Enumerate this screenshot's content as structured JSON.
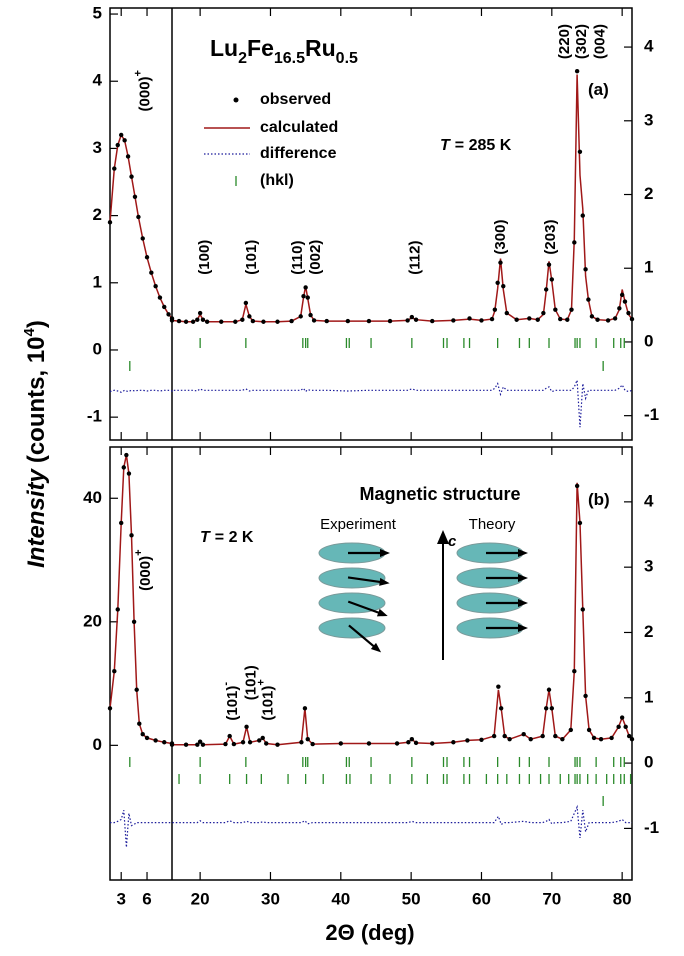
{
  "xlabel": "2Θ (deg)",
  "ylabel": [
    "Intensity",
    "(counts, 10",
    "4",
    ")"
  ],
  "chart_data": [
    {
      "type": "line",
      "title": [
        "Lu",
        "2",
        "Fe",
        "16.5",
        "Ru",
        "0.5"
      ],
      "panel_label": "(a)",
      "condition": [
        "T",
        "= 285 K"
      ],
      "legend": true,
      "xlim": [
        1.7,
        81.4
      ],
      "xbreak": [
        8.9,
        16
      ],
      "xticks": [
        3,
        6,
        20,
        30,
        40,
        50,
        60,
        70,
        80
      ],
      "xticklabels": false,
      "ylim": [
        -1.34,
        5.09
      ],
      "yticks": [
        -1,
        0,
        1,
        2,
        3,
        4,
        5
      ],
      "y2lim": [
        -1.33,
        4.53
      ],
      "y2ticks": [
        -1,
        0,
        1,
        2,
        3,
        4
      ],
      "x": [
        1.7,
        2.2,
        2.6,
        3.0,
        3.4,
        3.8,
        4.2,
        4.6,
        5.0,
        5.5,
        6.0,
        6.5,
        7.0,
        7.5,
        8.0,
        8.5,
        8.9,
        16,
        17,
        18,
        19,
        19.6,
        20,
        20.4,
        21,
        23,
        25,
        26.0,
        26.5,
        27.0,
        27.5,
        29,
        31,
        33,
        34.3,
        34.7,
        35.0,
        35.3,
        35.7,
        36.2,
        38,
        41,
        44,
        47,
        49.5,
        50.1,
        50.7,
        53,
        56,
        58.3,
        60,
        61.5,
        61.9,
        62.3,
        62.7,
        63.1,
        63.6,
        65,
        66.8,
        68,
        68.8,
        69.2,
        69.6,
        70.0,
        70.5,
        71.2,
        72.2,
        72.8,
        73.2,
        73.6,
        74.0,
        74.4,
        74.8,
        75.2,
        75.7,
        76.5,
        78,
        79,
        79.6,
        80.0,
        80.4,
        80.9,
        81.4
      ],
      "series": [
        {
          "name": "observed",
          "color": "#000000",
          "style": "points",
          "values": [
            1.9,
            2.7,
            3.05,
            3.2,
            3.12,
            2.88,
            2.58,
            2.28,
            1.98,
            1.66,
            1.38,
            1.15,
            0.95,
            0.78,
            0.64,
            0.53,
            0.47,
            0.44,
            0.43,
            0.42,
            0.42,
            0.45,
            0.55,
            0.45,
            0.42,
            0.42,
            0.42,
            0.45,
            0.7,
            0.5,
            0.43,
            0.42,
            0.42,
            0.43,
            0.5,
            0.8,
            0.93,
            0.78,
            0.52,
            0.44,
            0.43,
            0.43,
            0.43,
            0.43,
            0.44,
            0.49,
            0.45,
            0.43,
            0.44,
            0.47,
            0.44,
            0.46,
            0.6,
            1.0,
            1.3,
            0.95,
            0.55,
            0.45,
            0.47,
            0.45,
            0.55,
            0.9,
            1.27,
            1.05,
            0.6,
            0.46,
            0.45,
            0.6,
            1.6,
            4.15,
            2.95,
            2.0,
            1.2,
            0.75,
            0.5,
            0.45,
            0.44,
            0.47,
            0.62,
            0.82,
            0.72,
            0.55,
            0.46
          ]
        },
        {
          "name": "calculated",
          "color": "#a01818",
          "style": "line",
          "values": [
            1.9,
            2.7,
            3.05,
            3.2,
            3.12,
            2.88,
            2.58,
            2.28,
            1.98,
            1.66,
            1.38,
            1.15,
            0.95,
            0.78,
            0.64,
            0.53,
            0.47,
            0.44,
            0.43,
            0.42,
            0.42,
            0.45,
            0.53,
            0.45,
            0.42,
            0.42,
            0.42,
            0.45,
            0.68,
            0.5,
            0.43,
            0.42,
            0.42,
            0.43,
            0.5,
            0.78,
            0.95,
            0.77,
            0.52,
            0.44,
            0.43,
            0.43,
            0.43,
            0.43,
            0.44,
            0.48,
            0.45,
            0.43,
            0.44,
            0.46,
            0.44,
            0.46,
            0.58,
            0.92,
            1.36,
            0.9,
            0.55,
            0.45,
            0.47,
            0.45,
            0.53,
            0.88,
            1.32,
            1.03,
            0.6,
            0.46,
            0.45,
            0.6,
            1.65,
            4.1,
            2.6,
            2.1,
            1.1,
            0.75,
            0.5,
            0.45,
            0.44,
            0.47,
            0.6,
            0.9,
            0.72,
            0.53,
            0.46
          ]
        },
        {
          "name": "difference",
          "color": "#1a1a9a",
          "style": "dotted",
          "values": [
            -0.62,
            -0.6,
            -0.61,
            -0.63,
            -0.6,
            -0.62,
            -0.6,
            -0.61,
            -0.6,
            -0.6,
            -0.61,
            -0.6,
            -0.6,
            -0.61,
            -0.6,
            -0.6,
            -0.61,
            -0.6,
            -0.6,
            -0.6,
            -0.6,
            -0.61,
            -0.58,
            -0.6,
            -0.6,
            -0.6,
            -0.6,
            -0.6,
            -0.58,
            -0.61,
            -0.6,
            -0.6,
            -0.6,
            -0.6,
            -0.6,
            -0.57,
            -0.62,
            -0.59,
            -0.6,
            -0.6,
            -0.6,
            -0.61,
            -0.6,
            -0.6,
            -0.6,
            -0.58,
            -0.6,
            -0.6,
            -0.6,
            -0.6,
            -0.6,
            -0.6,
            -0.57,
            -0.5,
            -0.66,
            -0.55,
            -0.6,
            -0.6,
            -0.6,
            -0.6,
            -0.6,
            -0.57,
            -0.55,
            -0.62,
            -0.6,
            -0.6,
            -0.6,
            -0.6,
            -0.55,
            -0.45,
            -1.15,
            -0.5,
            -0.72,
            -0.6,
            -0.6,
            -0.6,
            -0.6,
            -0.6,
            -0.57,
            -0.52,
            -0.6,
            -0.62,
            -0.6
          ]
        }
      ],
      "hkl": {
        "name": "(hkl)",
        "color": "#2a8a2a",
        "rows": [
          [
            20,
            26.5,
            34.6,
            35.0,
            35.3,
            40.8,
            41.2,
            44.3,
            50.1,
            54.6,
            55.1,
            57.5,
            58.3,
            62.3,
            65.4,
            66.8,
            69.6,
            73.3,
            73.6,
            74.0,
            76.3,
            78.8,
            79.8,
            80.3
          ],
          [
            4.0,
            77.3
          ]
        ]
      },
      "annotations": [
        {
          "text": "(000)",
          "sup": "+",
          "x": 5.8,
          "y": 3.55
        },
        {
          "text": "(100)",
          "x": 20.7,
          "y": 1.12
        },
        {
          "text": "(101)",
          "x": 27.4,
          "y": 1.12
        },
        {
          "text": "(110)",
          "x": 33.9,
          "y": 1.12
        },
        {
          "text": "(002)",
          "x": 36.5,
          "y": 1.12
        },
        {
          "text": "(112)",
          "x": 50.6,
          "y": 1.12
        },
        {
          "text": "(300)",
          "x": 62.8,
          "y": 1.42
        },
        {
          "text": "(203)",
          "x": 69.9,
          "y": 1.42
        },
        {
          "text": "(220)",
          "x": 71.9,
          "y": 4.33
        },
        {
          "text": "(302)",
          "x": 74.3,
          "y": 4.33
        },
        {
          "text": "(004)",
          "x": 76.9,
          "y": 4.33
        }
      ]
    },
    {
      "type": "line",
      "panel_label": "(b)",
      "condition": [
        "T",
        "= 2 K"
      ],
      "legend": false,
      "xlim": [
        1.7,
        81.4
      ],
      "xbreak": [
        8.9,
        16
      ],
      "xticks": [
        3,
        6,
        20,
        30,
        40,
        50,
        60,
        70,
        80
      ],
      "xticklabels": true,
      "ylim": [
        -21.8,
        48.3
      ],
      "yticks": [
        0,
        20,
        40
      ],
      "y2lim": [
        -1.79,
        4.84
      ],
      "y2ticks": [
        -1,
        0,
        1,
        2,
        3,
        4
      ],
      "x": [
        1.7,
        2.2,
        2.6,
        3.0,
        3.3,
        3.6,
        3.9,
        4.2,
        4.5,
        4.8,
        5.1,
        5.5,
        6.0,
        7.0,
        8.0,
        8.9,
        16,
        18,
        19.6,
        20.0,
        20.4,
        23.6,
        24.2,
        24.8,
        26.1,
        26.6,
        27.1,
        28.4,
        28.9,
        29.4,
        31,
        34.4,
        34.9,
        35.3,
        36,
        40,
        44,
        48,
        49.6,
        50.1,
        50.7,
        53,
        56,
        58,
        60,
        61.8,
        62.4,
        62.8,
        63.3,
        64,
        66,
        67,
        68.7,
        69.2,
        69.6,
        70.0,
        70.5,
        71.5,
        72.7,
        73.2,
        73.6,
        74.0,
        74.4,
        74.8,
        75.3,
        76,
        77,
        78.5,
        79.5,
        80.0,
        80.5,
        81.0,
        81.4
      ],
      "series": [
        {
          "name": "observed",
          "color": "#000000",
          "style": "points",
          "values": [
            6,
            12,
            22,
            36,
            45,
            47,
            44,
            34,
            20,
            9,
            3.5,
            1.8,
            1.2,
            0.8,
            0.5,
            0.3,
            0.1,
            0.1,
            0.1,
            0.6,
            0.1,
            0.2,
            1.5,
            0.2,
            0.5,
            3.0,
            0.5,
            0.8,
            1.2,
            0.3,
            0.1,
            0.5,
            6.0,
            1.0,
            0.2,
            0.3,
            0.3,
            0.3,
            0.5,
            1.0,
            0.4,
            0.3,
            0.5,
            0.8,
            0.9,
            1.5,
            9.5,
            6,
            1.5,
            1,
            1.8,
            1.0,
            1.5,
            6,
            9,
            6,
            1.5,
            1,
            2.5,
            12,
            42,
            36,
            22,
            8,
            2.5,
            1.2,
            1,
            1.2,
            3,
            4.5,
            3,
            1.5,
            1
          ]
        },
        {
          "name": "calculated",
          "color": "#a01818",
          "style": "line",
          "values": [
            6,
            12,
            22,
            36,
            45,
            47,
            44,
            34,
            20,
            9,
            3.5,
            1.8,
            1.2,
            0.8,
            0.5,
            0.3,
            0.1,
            0.1,
            0.1,
            0.6,
            0.1,
            0.2,
            1.5,
            0.2,
            0.5,
            3.0,
            0.5,
            0.8,
            1.2,
            0.3,
            0.1,
            0.5,
            6.0,
            1.0,
            0.2,
            0.3,
            0.3,
            0.3,
            0.5,
            1.0,
            0.4,
            0.3,
            0.5,
            0.8,
            0.9,
            1.5,
            9.0,
            6,
            1.5,
            1,
            1.8,
            1.0,
            1.5,
            6,
            9,
            6,
            1.5,
            1,
            2.5,
            12,
            42.5,
            36,
            22,
            8,
            2.5,
            1.2,
            1,
            1.2,
            3,
            4.5,
            3,
            1.5,
            1
          ]
        },
        {
          "name": "difference",
          "color": "#1a1a9a",
          "style": "dotted",
          "values": [
            -12.5,
            -12.5,
            -12.3,
            -12,
            -10.5,
            -16.5,
            -11,
            -13,
            -12.8,
            -12.5,
            -12.5,
            -12.5,
            -12.5,
            -12.5,
            -12.5,
            -12.5,
            -12.5,
            -12.5,
            -12.5,
            -12.2,
            -12.5,
            -12.5,
            -12.2,
            -12.5,
            -12.5,
            -12.3,
            -12.5,
            -12.5,
            -12.4,
            -12.5,
            -12.5,
            -12.5,
            -12.2,
            -12.7,
            -12.5,
            -12.5,
            -12.5,
            -12.5,
            -12.5,
            -12.3,
            -12.5,
            -12.5,
            -12.5,
            -12.5,
            -12.5,
            -12.5,
            -11.5,
            -12.8,
            -12.5,
            -12.5,
            -12.3,
            -12.5,
            -12.5,
            -12.3,
            -12,
            -12.7,
            -12.5,
            -12.5,
            -12.3,
            -11,
            -10,
            -15,
            -10.5,
            -14,
            -12.5,
            -12.5,
            -12.5,
            -12.5,
            -12.3,
            -12,
            -12.5,
            -12.5,
            -12.5
          ]
        }
      ],
      "hkl": {
        "name": "(hkl)",
        "color": "#2a8a2a",
        "rows": [
          [
            4.0,
            20,
            26.5,
            34.6,
            35.0,
            35.3,
            40.8,
            41.2,
            44.3,
            50.1,
            54.6,
            55.1,
            57.5,
            58.3,
            62.3,
            65.4,
            66.8,
            69.6,
            73.3,
            73.6,
            74.0,
            76.3,
            78.8,
            79.8,
            80.3
          ],
          [
            17,
            20,
            24.2,
            26.6,
            28.7,
            32.5,
            35,
            37.5,
            40.8,
            41.3,
            44.3,
            47,
            50.1,
            52.3,
            54.6,
            55.1,
            57.5,
            58.3,
            60.7,
            62.3,
            63.6,
            65.4,
            66.8,
            68.4,
            69.6,
            71.2,
            72.4,
            73.3,
            73.6,
            74,
            75.1,
            76.3,
            77.8,
            78.8,
            79.8,
            80.3,
            81.2
          ],
          [
            77.3
          ]
        ]
      },
      "annotations": [
        {
          "text": "(000)",
          "sup": "+",
          "x": 5.9,
          "y": 25
        },
        {
          "text": "(101)",
          "sup": "-",
          "x": 24.7,
          "y": 4.0
        },
        {
          "text": "(101)",
          "x": 27.3,
          "y": 7.3
        },
        {
          "text": "(101)",
          "sup": "+",
          "x": 29.7,
          "y": 4.0
        }
      ],
      "inset": {
        "title": "Magnetic structure",
        "labels": [
          "Experiment",
          "Theory"
        ],
        "axis": "c",
        "experiment_angles": [
          0,
          8,
          20,
          40
        ],
        "theory_angles": [
          0,
          0,
          0,
          0
        ]
      }
    }
  ]
}
